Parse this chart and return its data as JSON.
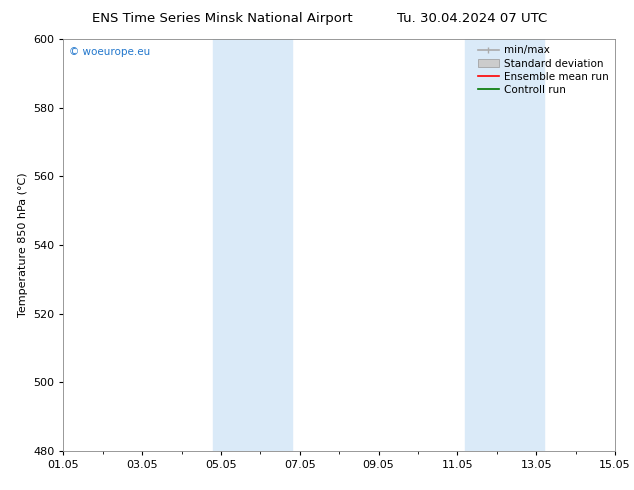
{
  "title_left": "ENS Time Series Minsk National Airport",
  "title_right": "Tu. 30.04.2024 07 UTC",
  "ylabel": "Temperature 850 hPa (°C)",
  "ylim": [
    480,
    600
  ],
  "yticks": [
    480,
    500,
    520,
    540,
    560,
    580,
    600
  ],
  "xlim": [
    0,
    14
  ],
  "xtick_positions": [
    0,
    2,
    4,
    6,
    8,
    10,
    12,
    14
  ],
  "xtick_labels": [
    "01.05",
    "03.05",
    "05.05",
    "07.05",
    "09.05",
    "11.05",
    "13.05",
    "15.05"
  ],
  "shaded_bands": [
    {
      "x_start": 3.8,
      "x_end": 5.8
    },
    {
      "x_start": 10.2,
      "x_end": 12.2
    }
  ],
  "shade_color": "#daeaf8",
  "background_color": "#ffffff",
  "plot_bg_color": "#ffffff",
  "watermark": "© woeurope.eu",
  "watermark_color": "#2277cc",
  "legend_items": [
    {
      "label": "min/max",
      "color": "#aaaaaa",
      "lw": 1.2,
      "type": "line_with_caps"
    },
    {
      "label": "Standard deviation",
      "color": "#cccccc",
      "lw": 8,
      "type": "patch"
    },
    {
      "label": "Ensemble mean run",
      "color": "#ff0000",
      "lw": 1.2,
      "type": "line"
    },
    {
      "label": "Controll run",
      "color": "#007700",
      "lw": 1.2,
      "type": "line"
    }
  ],
  "title_fontsize": 9.5,
  "axis_fontsize": 8,
  "tick_fontsize": 8,
  "legend_fontsize": 7.5
}
